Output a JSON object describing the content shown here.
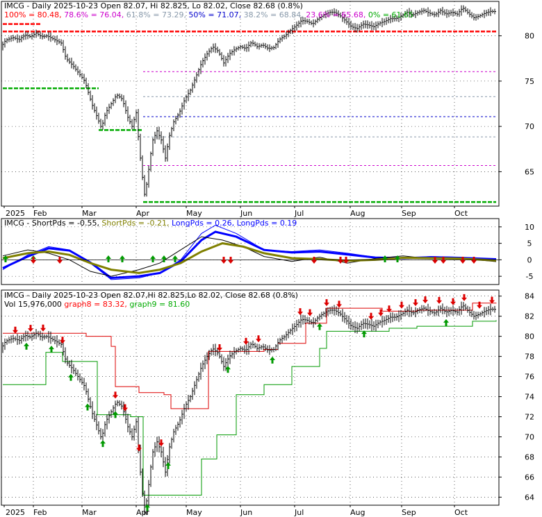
{
  "chart_data": [
    {
      "type": "line",
      "name": "price-fibonacci-panel",
      "header": {
        "title": "IMCG - Daily 2025-10-23 Open 82.07, Hi 82.825, Lo 82.02, Close 82.68 (0.8%)",
        "fib_items": [
          {
            "text": "100% = 80.48,",
            "color": "#ff0000"
          },
          {
            "text": "78.6% = 76.04,",
            "color": "#cc00cc"
          },
          {
            "text": "61.8% = 73.29,",
            "color": "#8899aa"
          },
          {
            "text": "50% = 71.07,",
            "color": "#0000cc"
          },
          {
            "text": "38.2% = 68.84,",
            "color": "#8899aa"
          },
          {
            "text": "23.6% = 65.68,",
            "color": "#cc00cc"
          },
          {
            "text": "0% = 61.65",
            "color": "#00aa00"
          }
        ]
      },
      "ylim": [
        61.2,
        83.8
      ],
      "y_ticks": [
        65,
        70,
        75,
        80
      ],
      "fib_levels": [
        {
          "pct": "100%",
          "value": 80.48,
          "color": "#ff0000"
        },
        {
          "pct": "78.6%",
          "value": 76.04,
          "color": "#cc00cc"
        },
        {
          "pct": "61.8%",
          "value": 73.29,
          "color": "#8899aa"
        },
        {
          "pct": "50%",
          "value": 71.07,
          "color": "#0000cc"
        },
        {
          "pct": "38.2%",
          "value": 68.84,
          "color": "#8899aa"
        },
        {
          "pct": "23.6%",
          "value": 65.68,
          "color": "#cc00cc"
        },
        {
          "pct": "0%",
          "value": 61.65,
          "color": "#00aa00"
        }
      ],
      "x_labels": [
        "2025",
        "Feb",
        "Mar",
        "Apr",
        "May",
        "Jun",
        "Jul",
        "Aug",
        "Sep",
        "Oct"
      ]
    },
    {
      "type": "line",
      "name": "shortpds-longpds-panel",
      "header": {
        "items": [
          {
            "text": "IMCG - ShortPds = -0.55,",
            "color": "#000000"
          },
          {
            "text": "ShortPds = -0.21,",
            "color": "#808000"
          },
          {
            "text": "LongPds = 0.26,",
            "color": "#0000ff"
          },
          {
            "text": "LongPds = 0.19",
            "color": "#0000ff"
          }
        ]
      },
      "ylim": [
        -7.5,
        12.5
      ],
      "y_ticks": [
        -5,
        0,
        5,
        10
      ],
      "series": [
        {
          "name": "ShortPds",
          "value": -0.55,
          "color": "#000000"
        },
        {
          "name": "ShortPds",
          "value": -0.21,
          "color": "#808000"
        },
        {
          "name": "LongPds",
          "value": 0.26,
          "color": "#0000ff"
        },
        {
          "name": "LongPds",
          "value": 0.19,
          "color": "#0000ff"
        }
      ]
    },
    {
      "type": "line",
      "name": "price-stop-panel",
      "header": {
        "line1": "IMCG - Daily 2025-10-23 Open 82.07,Hi 82.825,Lo 82.02, Close 82.68 (0.8%)",
        "line2_items": [
          {
            "text": "Vol 15,976,000",
            "color": "#000000"
          },
          {
            "text": "graph8 = 83.32,",
            "color": "#ff0000"
          },
          {
            "text": "graph9 = 81.60",
            "color": "#00aa00"
          }
        ]
      },
      "ylim": [
        63.2,
        84.6
      ],
      "y_ticks": [
        64,
        66,
        68,
        70,
        72,
        74,
        76,
        78,
        80,
        82,
        84
      ],
      "series": [
        {
          "name": "graph8",
          "value": 83.32,
          "color": "#ff0000"
        },
        {
          "name": "graph9",
          "value": 81.6,
          "color": "#00aa00"
        }
      ],
      "x_labels": [
        "2025",
        "Feb",
        "Mar",
        "Apr",
        "May",
        "Jun",
        "Jul",
        "Aug",
        "Sep",
        "Oct"
      ]
    }
  ]
}
